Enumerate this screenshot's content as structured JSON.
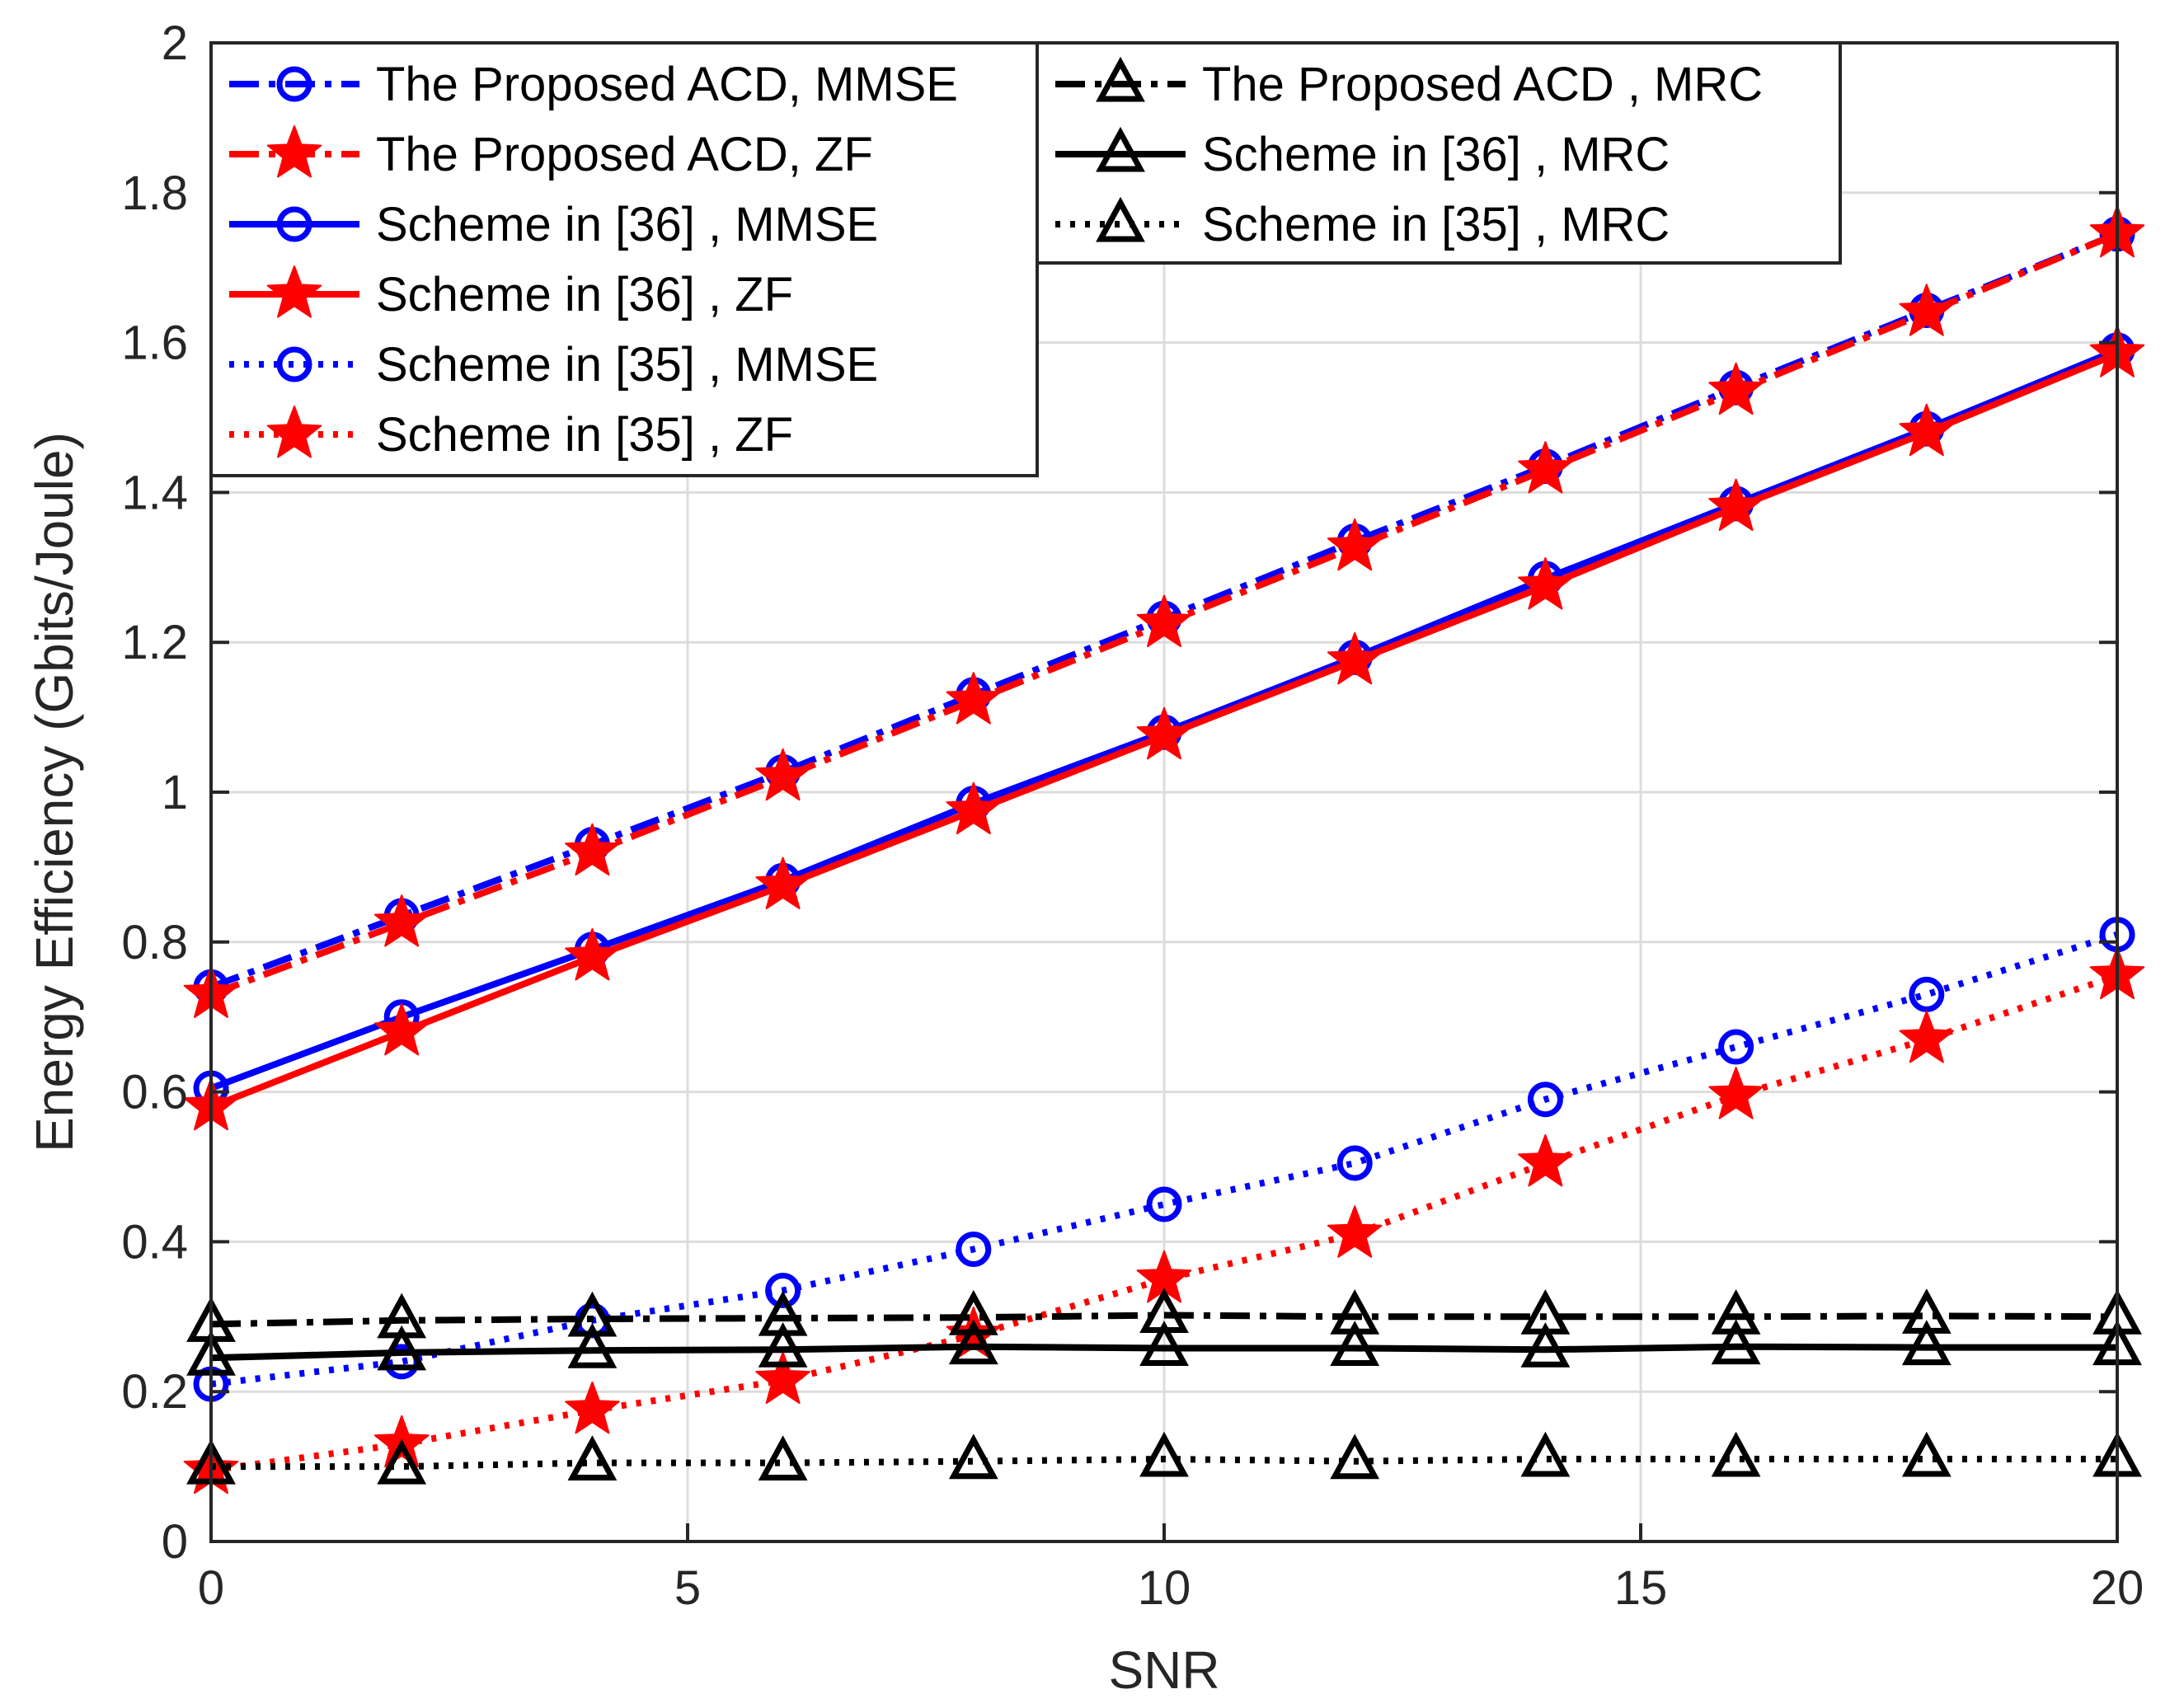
{
  "chart_data": {
    "type": "line",
    "title": "",
    "xlabel": "SNR",
    "ylabel": "Energy Efficiency (Gbits/Joule)",
    "xlim": [
      0,
      20
    ],
    "ylim": [
      0,
      2
    ],
    "xticks": [
      0,
      5,
      10,
      15,
      20
    ],
    "yticks": [
      0,
      0.2,
      0.4,
      0.6,
      0.8,
      1,
      1.2,
      1.4,
      1.6,
      1.8,
      2
    ],
    "xtick_labels": [
      "0",
      "5",
      "10",
      "15",
      "20"
    ],
    "ytick_labels": [
      "0",
      "0.2",
      "0.4",
      "0.6",
      "0.8",
      "1",
      "1.2",
      "1.4",
      "1.6",
      "1.8",
      "2"
    ],
    "grid": true,
    "x": [
      0,
      2,
      4,
      6,
      8,
      10,
      12,
      14,
      16,
      18,
      20
    ],
    "series": [
      {
        "name": "The Proposed ACD, MMSE",
        "color": "#0000ff",
        "line": "dashdot",
        "marker": "circle",
        "values": [
          0.74,
          0.835,
          0.93,
          1.027,
          1.13,
          1.232,
          1.335,
          1.435,
          1.54,
          1.643,
          1.745
        ]
      },
      {
        "name": "The Proposed ACD, ZF",
        "color": "#ff0000",
        "line": "dashdot",
        "marker": "star",
        "values": [
          0.73,
          0.825,
          0.92,
          1.02,
          1.122,
          1.225,
          1.327,
          1.43,
          1.535,
          1.64,
          1.745
        ]
      },
      {
        "name": "Scheme in [36] , MMSE",
        "color": "#0000ff",
        "line": "solid",
        "marker": "circle",
        "values": [
          0.605,
          0.7,
          0.79,
          0.882,
          0.985,
          1.08,
          1.18,
          1.285,
          1.385,
          1.485,
          1.59
        ]
      },
      {
        "name": "Scheme in [36] , ZF",
        "color": "#ff0000",
        "line": "solid",
        "marker": "star",
        "values": [
          0.58,
          0.68,
          0.78,
          0.875,
          0.975,
          1.075,
          1.175,
          1.275,
          1.38,
          1.48,
          1.585
        ]
      },
      {
        "name": "Scheme in [35] , MMSE",
        "color": "#0000ff",
        "line": "dotted",
        "marker": "circle",
        "values": [
          0.21,
          0.24,
          0.295,
          0.335,
          0.39,
          0.45,
          0.505,
          0.59,
          0.66,
          0.73,
          0.81
        ]
      },
      {
        "name": "Scheme in [35] , ZF",
        "color": "#ff0000",
        "line": "dotted",
        "marker": "star",
        "values": [
          0.095,
          0.13,
          0.175,
          0.215,
          0.275,
          0.35,
          0.41,
          0.505,
          0.595,
          0.67,
          0.755
        ]
      },
      {
        "name": "The Proposed ACD , MRC",
        "color": "#000000",
        "line": "dashdot",
        "marker": "triangle",
        "values": [
          0.29,
          0.295,
          0.297,
          0.298,
          0.299,
          0.302,
          0.3,
          0.3,
          0.3,
          0.301,
          0.3
        ]
      },
      {
        "name": "Scheme in [36] , MRC",
        "color": "#000000",
        "line": "solid",
        "marker": "triangle",
        "values": [
          0.245,
          0.252,
          0.255,
          0.256,
          0.26,
          0.258,
          0.258,
          0.256,
          0.26,
          0.259,
          0.259
        ]
      },
      {
        "name": "Scheme in [35] , MRC",
        "color": "#000000",
        "line": "dotted",
        "marker": "triangle",
        "values": [
          0.1,
          0.1,
          0.105,
          0.105,
          0.107,
          0.11,
          0.107,
          0.11,
          0.11,
          0.11,
          0.11
        ]
      }
    ],
    "legend": [
      {
        "position": "top-left",
        "entries": [
          0,
          1,
          2,
          3,
          4,
          5
        ]
      },
      {
        "position": "top-center",
        "entries": [
          6,
          7,
          8
        ]
      }
    ]
  }
}
